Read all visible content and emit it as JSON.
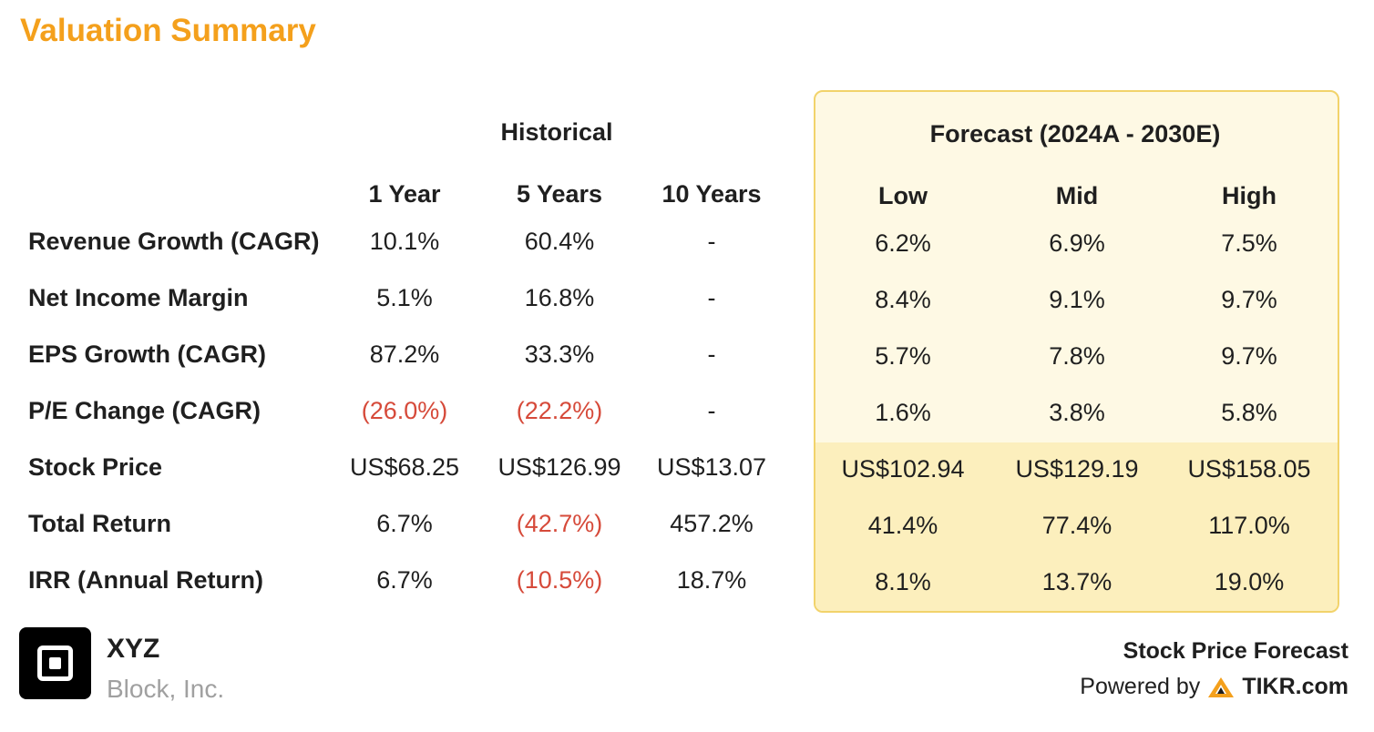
{
  "title": "Valuation Summary",
  "historical": {
    "header": "Historical",
    "columns": [
      "1 Year",
      "5 Years",
      "10 Years"
    ]
  },
  "forecast": {
    "header": "Forecast (2024A - 2030E)",
    "columns": [
      "Low",
      "Mid",
      "High"
    ]
  },
  "rows": [
    {
      "label": "Revenue Growth (CAGR)",
      "historical": [
        "10.1%",
        "60.4%",
        "-"
      ],
      "forecast": [
        "6.2%",
        "6.9%",
        "7.5%"
      ]
    },
    {
      "label": "Net Income Margin",
      "historical": [
        "5.1%",
        "16.8%",
        "-"
      ],
      "forecast": [
        "8.4%",
        "9.1%",
        "9.7%"
      ]
    },
    {
      "label": "EPS Growth (CAGR)",
      "historical": [
        "87.2%",
        "33.3%",
        "-"
      ],
      "forecast": [
        "5.7%",
        "7.8%",
        "9.7%"
      ]
    },
    {
      "label": "P/E Change (CAGR)",
      "historical": [
        "(26.0%)",
        "(22.2%)",
        "-"
      ],
      "forecast": [
        "1.6%",
        "3.8%",
        "5.8%"
      ]
    },
    {
      "label": "Stock Price",
      "historical": [
        "US$68.25",
        "US$126.99",
        "US$13.07"
      ],
      "forecast": [
        "US$102.94",
        "US$129.19",
        "US$158.05"
      ]
    },
    {
      "label": "Total Return",
      "historical": [
        "6.7%",
        "(42.7%)",
        "457.2%"
      ],
      "forecast": [
        "41.4%",
        "77.4%",
        "117.0%"
      ]
    },
    {
      "label": "IRR (Annual Return)",
      "historical": [
        "6.7%",
        "(10.5%)",
        "18.7%"
      ],
      "forecast": [
        "8.1%",
        "13.7%",
        "19.0%"
      ]
    }
  ],
  "company": {
    "ticker": "XYZ",
    "name": "Block, Inc.",
    "logo_icon": "square-logo-icon"
  },
  "footer": {
    "title": "Stock Price Forecast",
    "powered_by": "Powered by",
    "brand": "TIKR.com",
    "brand_icon": "tikr-logo-icon"
  },
  "colors": {
    "title": "#f4a01c",
    "negative": "#d64a3a",
    "forecast_bg_top": "#fef9e4",
    "forecast_bg_bottom": "#fcefbd",
    "forecast_border": "#f2d36b"
  }
}
